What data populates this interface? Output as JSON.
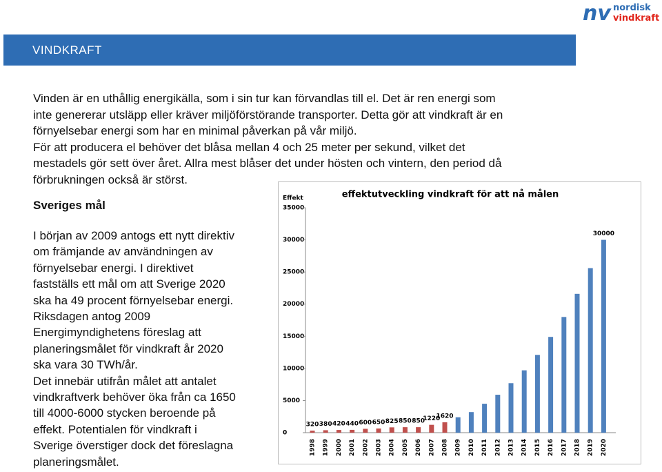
{
  "logo": {
    "mark": "nv",
    "line1": "nordisk",
    "line2": "vindkraft"
  },
  "header": {
    "title": "VINDKRAFT"
  },
  "intro": {
    "lines": [
      "Vinden är en uthållig energikälla, som i sin tur kan förvandlas till el. Det är ren energi som",
      "inte genererar utsläpp eller kräver miljöförstörande transporter. Detta gör att vindkraft är en",
      "förnyelsebar energi som har en minimal påverkan på vår miljö.",
      "För att producera el behöver det blåsa mellan 4 och 25 meter per sekund, vilket det",
      "mestadels gör sett över året. Allra mest blåser det under hösten och vintern, den period då",
      "förbrukningen också är störst."
    ]
  },
  "section": {
    "heading": "Sveriges mål",
    "lines": [
      "I början av 2009 antogs ett nytt direktiv",
      "om främjande av användningen av",
      "förnyelsebar energi. I direktivet",
      "fastställs ett mål om att Sverige 2020",
      "ska ha 49 procent förnyelsebar energi.",
      "Riksdagen antog 2009",
      "Energimyndighetens föreslag att",
      "planeringsmålet för vindkraft år 2020",
      "ska vara 30 TWh/år.",
      "Det innebär utifrån målet att antalet",
      "vindkraftverk behöver öka från ca 1650",
      "till 4000-6000 stycken beroende på",
      "effekt. Potentialen för vindkraft i",
      "Sverige överstiger dock det föreslagna",
      "planeringsmålet."
    ]
  },
  "chart_data": {
    "type": "bar",
    "title": "effektutveckling vindkraft för att nå målen",
    "y_label": "Effekt",
    "categories": [
      "1998",
      "1999",
      "2000",
      "2001",
      "2002",
      "2003",
      "2004",
      "2005",
      "2006",
      "2007",
      "2008",
      "2009",
      "2010",
      "2011",
      "2012",
      "2013",
      "2014",
      "2015",
      "2016",
      "2017",
      "2018",
      "2019",
      "2020"
    ],
    "values": [
      320,
      380,
      420,
      440,
      600,
      650,
      825,
      850,
      850,
      1220,
      1620,
      2400,
      3200,
      4500,
      5900,
      7700,
      9700,
      12100,
      14900,
      18000,
      21600,
      25600,
      30000
    ],
    "value_labels": [
      "320",
      "380",
      "420",
      "440",
      "600",
      "650",
      "825",
      "850",
      "850",
      "1220",
      "1620",
      null,
      null,
      null,
      null,
      null,
      null,
      null,
      null,
      null,
      null,
      null,
      "30000"
    ],
    "colors": [
      "#c0504d",
      "#c0504d",
      "#c0504d",
      "#c0504d",
      "#c0504d",
      "#c0504d",
      "#c0504d",
      "#c0504d",
      "#c0504d",
      "#c0504d",
      "#c0504d",
      "#4f81bd",
      "#4f81bd",
      "#4f81bd",
      "#4f81bd",
      "#4f81bd",
      "#4f81bd",
      "#4f81bd",
      "#4f81bd",
      "#4f81bd",
      "#4f81bd",
      "#4f81bd",
      "#4f81bd"
    ],
    "ylim": [
      0,
      35000
    ],
    "yticks": [
      0,
      5000,
      10000,
      15000,
      20000,
      25000,
      30000,
      35000
    ],
    "grid": false
  }
}
